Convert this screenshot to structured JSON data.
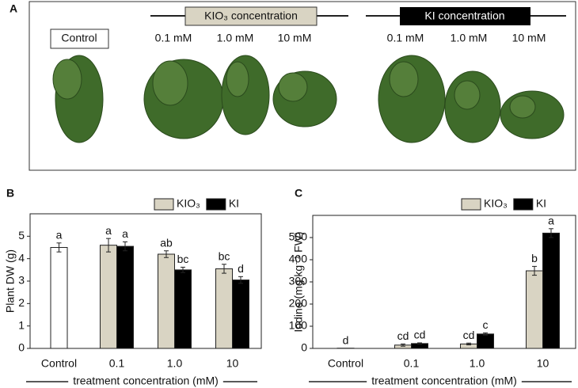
{
  "photo_panel": {
    "panel_label": "A",
    "control": "Control",
    "kio3_header": "KIO₃ concentration",
    "ki_header": "KI concentration",
    "kio3_levels": [
      "0.1 mM",
      "1.0 mM",
      "10 mM"
    ],
    "ki_levels": [
      "0.1 mM",
      "1.0 mM",
      "10 mM"
    ]
  },
  "chart_data": [
    {
      "type": "bar",
      "panel_label": "B",
      "y_label": "Plant DW (g)",
      "x_label": "treatment concentration (mM)",
      "categories": [
        "Control",
        "0.1",
        "1.0",
        "10"
      ],
      "ylim": [
        0,
        6
      ],
      "yticks": [
        0,
        1,
        2,
        3,
        4,
        5
      ],
      "control": {
        "value": 4.5,
        "error": 0.2,
        "letter": "a",
        "color": "#ffffff"
      },
      "series": [
        {
          "name": "KIO₃",
          "color": "#d9d4c3",
          "values": [
            null,
            4.6,
            4.2,
            3.55
          ],
          "errors": [
            null,
            0.3,
            0.15,
            0.2
          ],
          "letters": [
            null,
            "a",
            "ab",
            "bc"
          ]
        },
        {
          "name": "KI",
          "color": "#000000",
          "values": [
            null,
            4.55,
            3.5,
            3.05
          ],
          "errors": [
            null,
            0.2,
            0.12,
            0.15
          ],
          "letters": [
            null,
            "a",
            "bc",
            "d"
          ]
        }
      ]
    },
    {
      "type": "bar",
      "panel_label": "C",
      "y_label": "Iodine (mg kg⁻¹ FW)",
      "x_label": "treatment concentration (mM)",
      "categories": [
        "Control",
        "0.1",
        "1.0",
        "10"
      ],
      "ylim": [
        0,
        600
      ],
      "yticks": [
        0,
        100,
        200,
        300,
        400,
        500
      ],
      "control": {
        "value": 1,
        "error": 0,
        "letter": "d",
        "color": "#ffffff"
      },
      "series": [
        {
          "name": "KIO₃",
          "color": "#d9d4c3",
          "values": [
            null,
            15,
            20,
            350
          ],
          "errors": [
            null,
            5,
            4,
            20
          ],
          "letters": [
            null,
            "cd",
            "cd",
            "b"
          ]
        },
        {
          "name": "KI",
          "color": "#000000",
          "values": [
            null,
            22,
            65,
            520
          ],
          "errors": [
            null,
            3,
            5,
            20
          ],
          "letters": [
            null,
            "cd",
            "c",
            "a"
          ]
        }
      ]
    }
  ]
}
